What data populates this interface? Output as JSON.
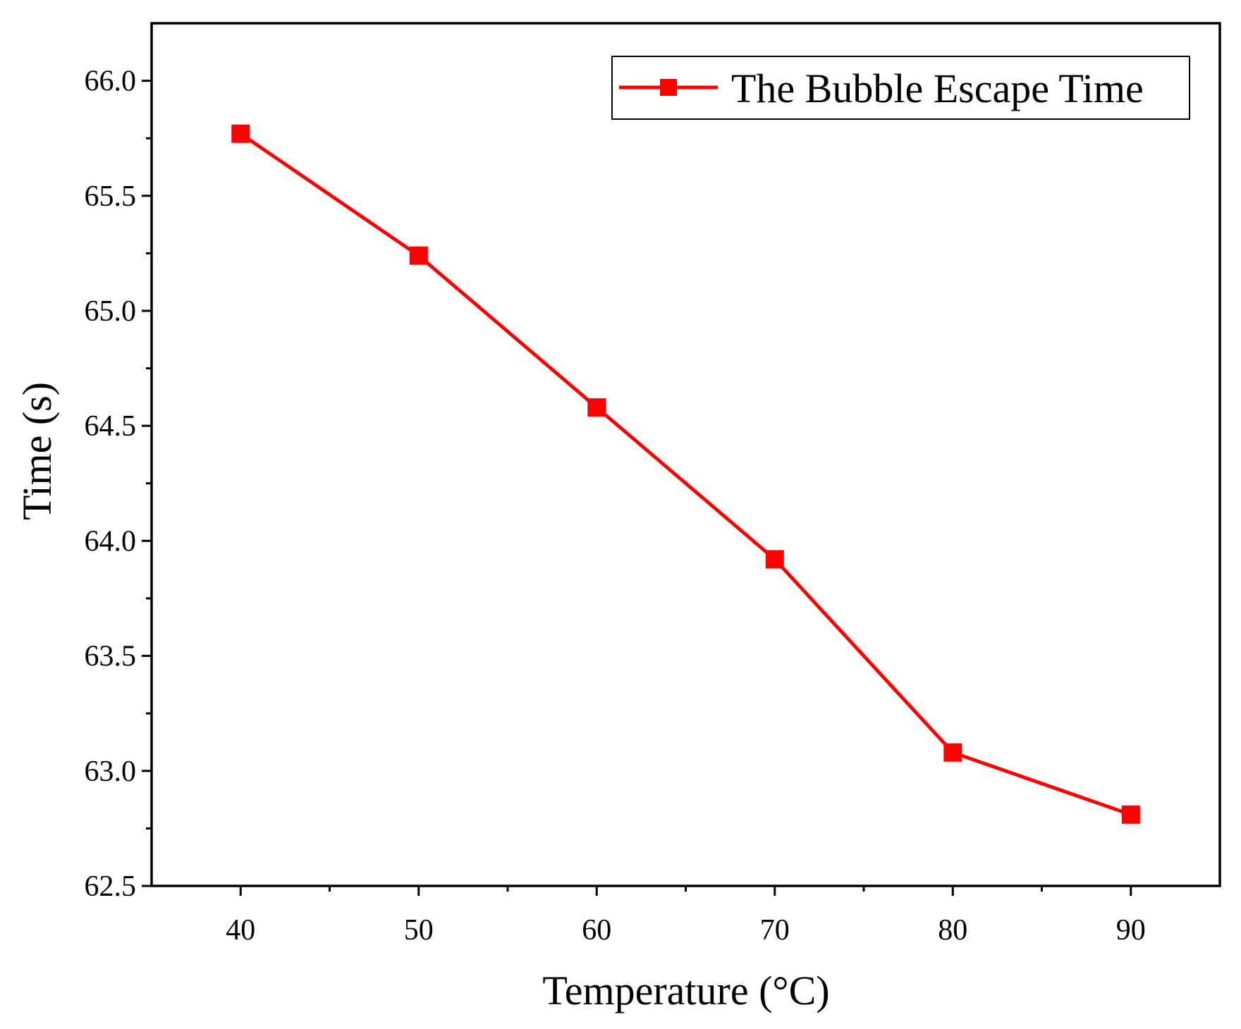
{
  "chart_data": {
    "type": "line",
    "title": "",
    "xlabel": "Temperature (°C)",
    "ylabel": "Time (s)",
    "xlim": [
      35,
      95
    ],
    "ylim": [
      62.5,
      66.25
    ],
    "xticks": [
      40,
      50,
      60,
      70,
      80,
      90
    ],
    "xtick_labels": [
      "40",
      "50",
      "60",
      "70",
      "80",
      "90"
    ],
    "yticks": [
      62.5,
      63.0,
      63.5,
      64.0,
      64.5,
      65.0,
      65.5,
      66.0
    ],
    "ytick_labels": [
      "62.5",
      "63.0",
      "63.5",
      "64.0",
      "64.5",
      "65.0",
      "65.5",
      "66.0"
    ],
    "grid": false,
    "legend_position": "top-right",
    "series": [
      {
        "name": "The Bubble Escape Time",
        "color": "#ff0000",
        "marker": "square",
        "x": [
          40,
          50,
          60,
          70,
          80,
          90
        ],
        "y": [
          65.77,
          65.24,
          64.58,
          63.92,
          63.08,
          62.81
        ]
      }
    ]
  }
}
